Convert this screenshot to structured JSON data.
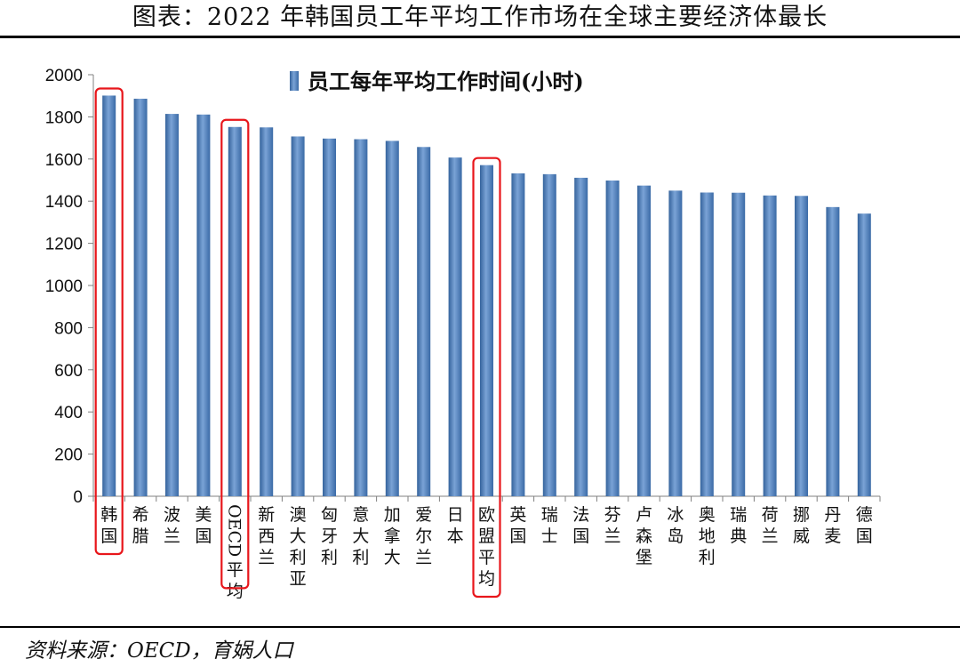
{
  "header": {
    "title": "图表：2022 年韩国员工年平均工作市场在全球主要经济体最长"
  },
  "footer": {
    "source": "资料来源：OECD，育娲人口"
  },
  "chart_data": {
    "type": "bar",
    "legend": "员工每年平均工作时间(小时)",
    "categories": [
      "韩国",
      "希腊",
      "波兰",
      "美国",
      "OECD平均",
      "新西兰",
      "澳大利亚",
      "匈牙利",
      "意大利",
      "加拿大",
      "爱尔兰",
      "日本",
      "欧盟平均",
      "英国",
      "瑞士",
      "法国",
      "芬兰",
      "卢森堡",
      "冰岛",
      "奥地利",
      "瑞典",
      "荷兰",
      "挪威",
      "丹麦",
      "德国"
    ],
    "values": [
      1901,
      1886,
      1814,
      1811,
      1752,
      1750,
      1707,
      1697,
      1694,
      1686,
      1657,
      1607,
      1571,
      1532,
      1528,
      1511,
      1498,
      1474,
      1450,
      1441,
      1440,
      1427,
      1425,
      1372,
      1341
    ],
    "highlighted": [
      "韩国",
      "OECD平均",
      "欧盟平均"
    ],
    "ylim": [
      0,
      2000
    ],
    "yticks": [
      0,
      200,
      400,
      600,
      800,
      1000,
      1200,
      1400,
      1600,
      1800,
      2000
    ],
    "bar_color": "#4a7ebb",
    "highlight_color": "#e8161b",
    "legend_position": "top-center"
  }
}
